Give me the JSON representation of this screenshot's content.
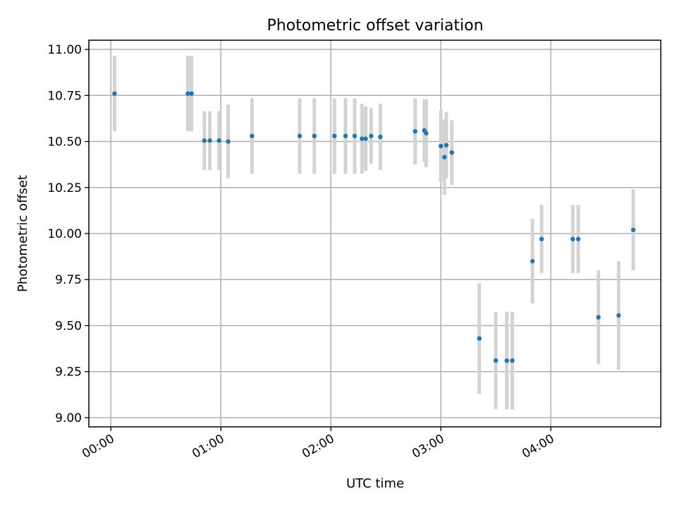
{
  "chart_data": {
    "type": "scatter",
    "title": "Photometric offset variation",
    "xlabel": "UTC time",
    "ylabel": "Photometric offset",
    "x_ticks": [
      "00:00",
      "01:00",
      "02:00",
      "03:00",
      "04:00"
    ],
    "x_tick_minutes": [
      0,
      60,
      120,
      180,
      240
    ],
    "y_ticks": [
      "9.00",
      "9.25",
      "9.50",
      "9.75",
      "10.00",
      "10.25",
      "10.50",
      "10.75",
      "11.00"
    ],
    "y_tick_values": [
      9.0,
      9.25,
      9.5,
      9.75,
      10.0,
      10.25,
      10.5,
      10.75,
      11.0
    ],
    "xlim": [
      "23:48",
      "05:00"
    ],
    "ylim": [
      8.95,
      11.05
    ],
    "grid": true,
    "x_tick_rotation_deg": 30,
    "colors": {
      "point": "#1f77b4",
      "error_bar": "#d3d3d3",
      "grid": "#b0b0b0"
    },
    "points": [
      {
        "time": "00:02",
        "value": 10.76,
        "error": 0.205
      },
      {
        "time": "00:42",
        "value": 10.76,
        "error": 0.205
      },
      {
        "time": "00:44",
        "value": 10.76,
        "error": 0.205
      },
      {
        "time": "00:51",
        "value": 10.505,
        "error": 0.16
      },
      {
        "time": "00:54",
        "value": 10.505,
        "error": 0.16
      },
      {
        "time": "00:59",
        "value": 10.505,
        "error": 0.16
      },
      {
        "time": "01:04",
        "value": 10.5,
        "error": 0.2
      },
      {
        "time": "01:17",
        "value": 10.53,
        "error": 0.205
      },
      {
        "time": "01:43",
        "value": 10.53,
        "error": 0.205
      },
      {
        "time": "01:51",
        "value": 10.53,
        "error": 0.205
      },
      {
        "time": "02:02",
        "value": 10.53,
        "error": 0.205
      },
      {
        "time": "02:08",
        "value": 10.53,
        "error": 0.205
      },
      {
        "time": "02:13",
        "value": 10.53,
        "error": 0.205
      },
      {
        "time": "02:17",
        "value": 10.515,
        "error": 0.19
      },
      {
        "time": "02:19",
        "value": 10.515,
        "error": 0.175
      },
      {
        "time": "02:22",
        "value": 10.53,
        "error": 0.15
      },
      {
        "time": "02:27",
        "value": 10.525,
        "error": 0.18
      },
      {
        "time": "02:46",
        "value": 10.555,
        "error": 0.18
      },
      {
        "time": "02:51",
        "value": 10.56,
        "error": 0.17
      },
      {
        "time": "02:52",
        "value": 10.545,
        "error": 0.185
      },
      {
        "time": "03:00",
        "value": 10.475,
        "error": 0.195
      },
      {
        "time": "03:02",
        "value": 10.415,
        "error": 0.205
      },
      {
        "time": "03:03",
        "value": 10.48,
        "error": 0.18
      },
      {
        "time": "03:06",
        "value": 10.44,
        "error": 0.175
      },
      {
        "time": "03:21",
        "value": 9.43,
        "error": 0.3
      },
      {
        "time": "03:30",
        "value": 9.31,
        "error": 0.265
      },
      {
        "time": "03:36",
        "value": 9.31,
        "error": 0.265
      },
      {
        "time": "03:39",
        "value": 9.31,
        "error": 0.265
      },
      {
        "time": "03:50",
        "value": 9.85,
        "error": 0.23
      },
      {
        "time": "03:55",
        "value": 9.97,
        "error": 0.185
      },
      {
        "time": "04:12",
        "value": 9.97,
        "error": 0.185
      },
      {
        "time": "04:15",
        "value": 9.97,
        "error": 0.185
      },
      {
        "time": "04:26",
        "value": 9.545,
        "error": 0.255
      },
      {
        "time": "04:37",
        "value": 9.555,
        "error": 0.295
      },
      {
        "time": "04:45",
        "value": 10.02,
        "error": 0.22
      }
    ]
  }
}
